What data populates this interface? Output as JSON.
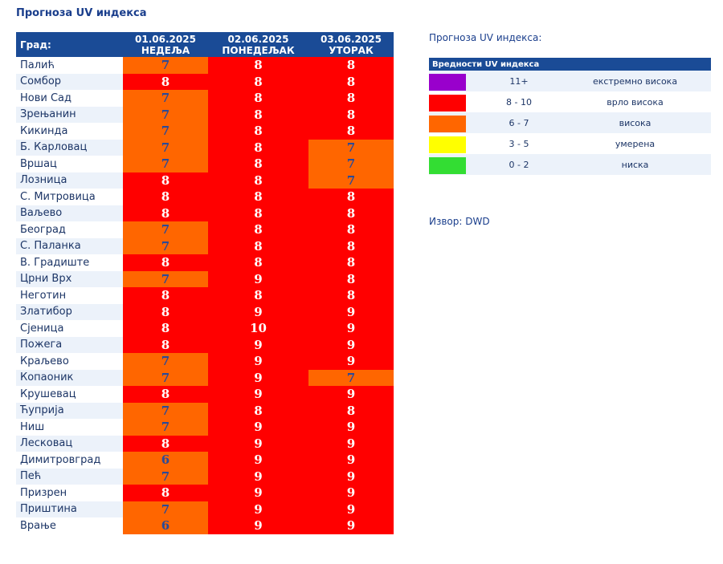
{
  "page_title": "Прогноза UV индекса",
  "table": {
    "city_header": "Град:",
    "days": [
      {
        "date": "01.06.2025",
        "weekday": "НЕДЕЉА"
      },
      {
        "date": "02.06.2025",
        "weekday": "ПОНЕДЕЉАК"
      },
      {
        "date": "03.06.2025",
        "weekday": "УТОРАК"
      }
    ],
    "rows": [
      {
        "city": "Палић",
        "values": [
          "7",
          "8",
          "8"
        ]
      },
      {
        "city": "Сомбор",
        "values": [
          "8",
          "8",
          "8"
        ]
      },
      {
        "city": "Нови Сад",
        "values": [
          "7",
          "8",
          "8"
        ]
      },
      {
        "city": "Зрењанин",
        "values": [
          "7",
          "8",
          "8"
        ]
      },
      {
        "city": "Кикинда",
        "values": [
          "7",
          "8",
          "8"
        ]
      },
      {
        "city": "Б. Карловац",
        "values": [
          "7",
          "8",
          "7"
        ]
      },
      {
        "city": "Вршац",
        "values": [
          "7",
          "8",
          "7"
        ]
      },
      {
        "city": "Лозница",
        "values": [
          "8",
          "8",
          "7"
        ]
      },
      {
        "city": "С. Митровица",
        "values": [
          "8",
          "8",
          "8"
        ]
      },
      {
        "city": "Ваљево",
        "values": [
          "8",
          "8",
          "8"
        ]
      },
      {
        "city": "Београд",
        "values": [
          "7",
          "8",
          "8"
        ]
      },
      {
        "city": "С. Паланка",
        "values": [
          "7",
          "8",
          "8"
        ]
      },
      {
        "city": "В. Градиште",
        "values": [
          "8",
          "8",
          "8"
        ]
      },
      {
        "city": "Црни Врх",
        "values": [
          "7",
          "9",
          "8"
        ]
      },
      {
        "city": "Неготин",
        "values": [
          "8",
          "8",
          "8"
        ]
      },
      {
        "city": "Златибор",
        "values": [
          "8",
          "9",
          "9"
        ]
      },
      {
        "city": "Сјеница",
        "values": [
          "8",
          "10",
          "9"
        ]
      },
      {
        "city": "Пожега",
        "values": [
          "8",
          "9",
          "9"
        ]
      },
      {
        "city": "Краљево",
        "values": [
          "7",
          "9",
          "9"
        ]
      },
      {
        "city": "Копаоник",
        "values": [
          "7",
          "9",
          "7"
        ]
      },
      {
        "city": "Крушевац",
        "values": [
          "8",
          "9",
          "9"
        ]
      },
      {
        "city": "Ћуприја",
        "values": [
          "7",
          "8",
          "8"
        ]
      },
      {
        "city": "Ниш",
        "values": [
          "7",
          "9",
          "9"
        ]
      },
      {
        "city": "Лесковац",
        "values": [
          "8",
          "9",
          "9"
        ]
      },
      {
        "city": "Димитровград",
        "values": [
          "6",
          "9",
          "9"
        ]
      },
      {
        "city": "Пећ",
        "values": [
          "7",
          "9",
          "9"
        ]
      },
      {
        "city": "Призрен",
        "values": [
          "8",
          "9",
          "9"
        ]
      },
      {
        "city": "Приштина",
        "values": [
          "7",
          "9",
          "9"
        ]
      },
      {
        "city": "Врање",
        "values": [
          "6",
          "9",
          "9"
        ]
      }
    ]
  },
  "legend": {
    "title": "Прогноза UV индекса:",
    "header": "Вредности UV индекса",
    "items": [
      {
        "range": "11+",
        "label": "екстремно висока",
        "color": "#9900cc"
      },
      {
        "range": "8 - 10",
        "label": "врло висока",
        "color": "#ff0000"
      },
      {
        "range": "6 - 7",
        "label": "висока",
        "color": "#ff6600"
      },
      {
        "range": "3 - 5",
        "label": "умерена",
        "color": "#ffff00"
      },
      {
        "range": "0 - 2",
        "label": "ниска",
        "color": "#33dd33"
      }
    ]
  },
  "source": "Извор: DWD"
}
